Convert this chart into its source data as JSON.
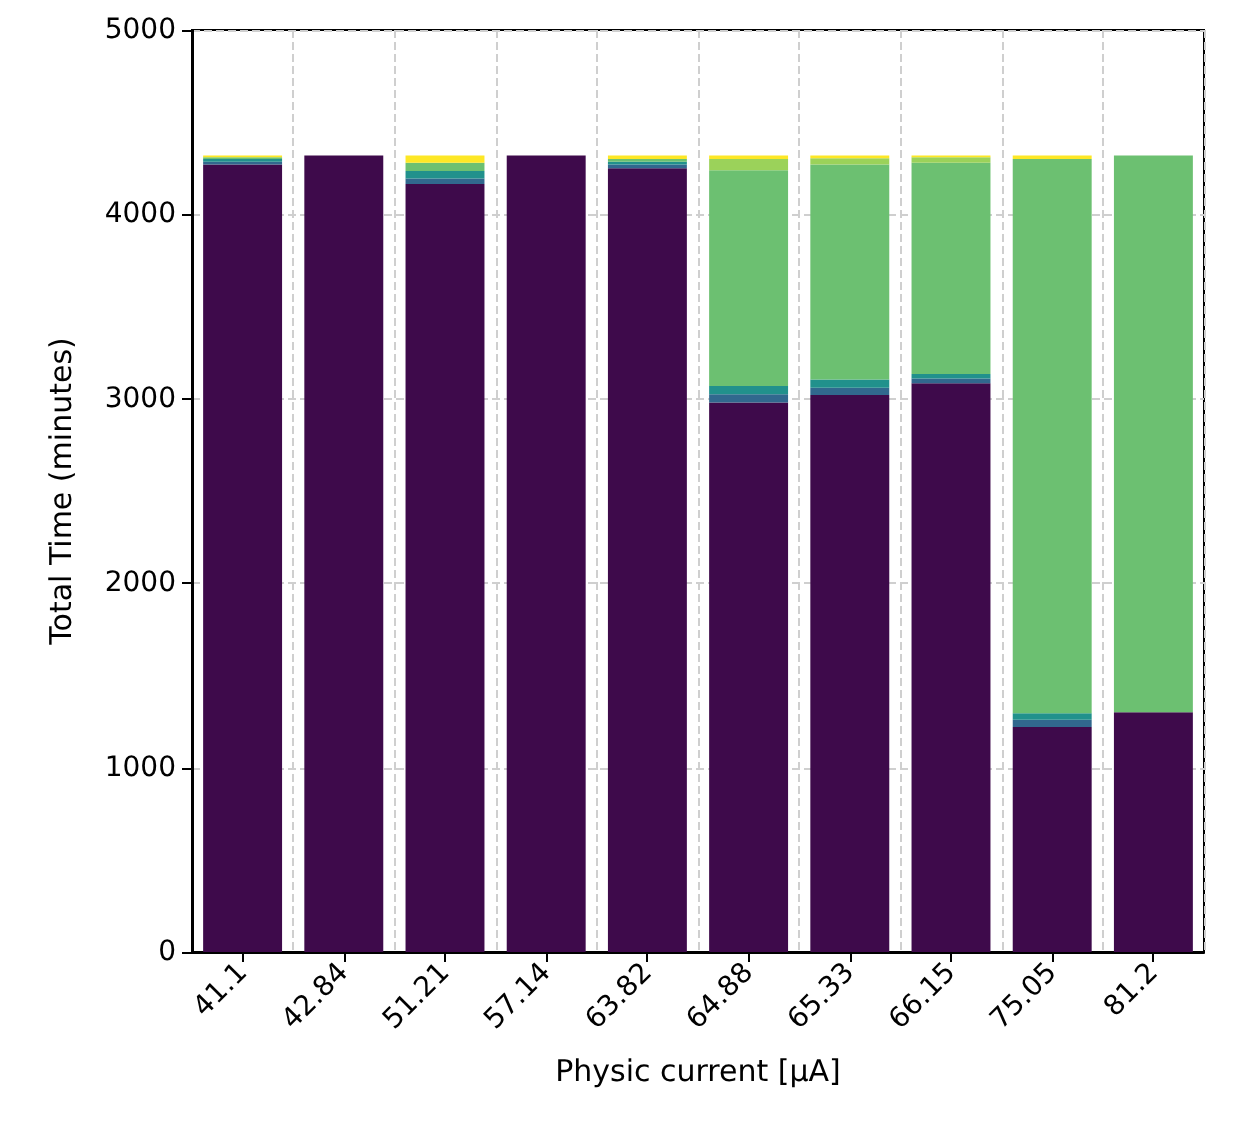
{
  "chart_data": {
    "type": "bar",
    "stacked": true,
    "xlabel": "Physic current [μA]",
    "ylabel": "Total Time (minutes)",
    "categories": [
      "41.1",
      "42.84",
      "51.21",
      "57.14",
      "63.82",
      "64.88",
      "65.33",
      "66.15",
      "75.05",
      "81.2"
    ],
    "series": [
      {
        "color": "#3e0a4b",
        "values": [
          4270,
          4320,
          4165,
          4320,
          4250,
          2980,
          3020,
          3085,
          1220,
          1300
        ]
      },
      {
        "color": "#31688e",
        "values": [
          15,
          0,
          30,
          0,
          20,
          45,
          40,
          25,
          40,
          0
        ]
      },
      {
        "color": "#21918c",
        "values": [
          15,
          0,
          40,
          0,
          15,
          45,
          45,
          25,
          35,
          0
        ]
      },
      {
        "color": "#6cc071",
        "values": [
          10,
          0,
          45,
          0,
          15,
          1170,
          1165,
          1145,
          3005,
          3020
        ]
      },
      {
        "color": "#9bd25a",
        "values": [
          0,
          0,
          0,
          0,
          0,
          60,
          35,
          30,
          0,
          0
        ]
      },
      {
        "color": "#fde725",
        "values": [
          10,
          0,
          40,
          0,
          20,
          20,
          15,
          10,
          20,
          0
        ]
      }
    ],
    "ylim": [
      0,
      5000
    ],
    "yticks": [
      0,
      1000,
      2000,
      3000,
      4000,
      5000
    ],
    "grid": true
  }
}
